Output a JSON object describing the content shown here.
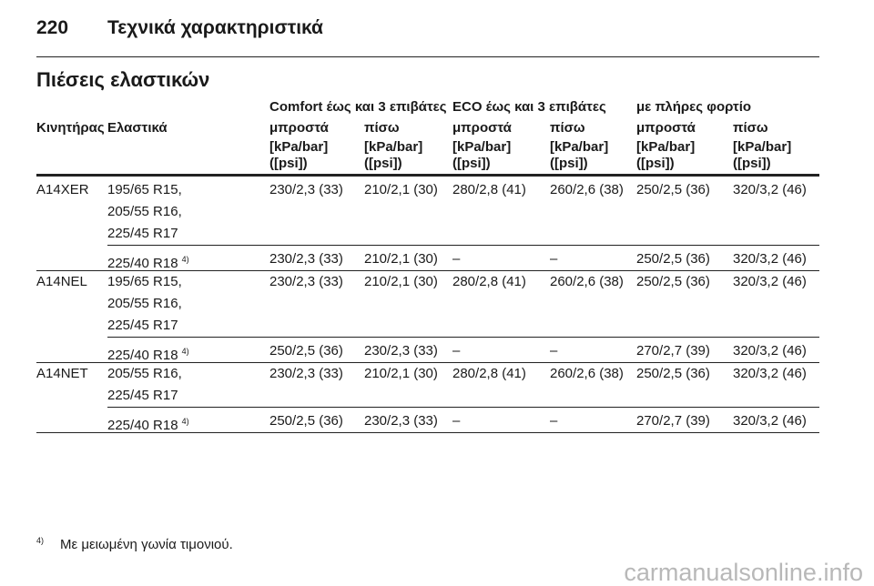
{
  "header": {
    "page_number": "220",
    "title": "Τεχνικά χαρακτηριστικά"
  },
  "section_title": "Πιέσεις ελαστικών",
  "table": {
    "group_headers": [
      "Comfort έως και 3 επιβάτες",
      "ECO έως και 3 επιβάτες",
      "με πλήρες φορτίο"
    ],
    "columns": [
      "Κινητήρας",
      "Ελαστικά",
      "μπροστά",
      "πίσω",
      "μπροστά",
      "πίσω",
      "μπροστά",
      "πίσω"
    ],
    "units": [
      [
        "[kPa/bar]",
        "([psi])"
      ],
      [
        "[kPa/bar]",
        "([psi])"
      ],
      [
        "[kPa/bar]",
        "([psi])"
      ],
      [
        "[kPa/bar]",
        "([psi])"
      ],
      [
        "[kPa/bar]",
        "([psi])"
      ],
      [
        "[kPa/bar]",
        "([psi])"
      ]
    ],
    "rows": [
      {
        "engine": "A14XER",
        "groups": [
          {
            "tires": [
              "195/65 R15,",
              "205/55 R16,",
              "225/45 R17"
            ],
            "values": [
              "230/2,3 (33)",
              "210/2,1 (30)",
              "280/2,8 (41)",
              "260/2,6 (38)",
              "250/2,5 (36)",
              "320/3,2 (46)"
            ]
          },
          {
            "tires": [
              "225/40 R18"
            ],
            "footnote_ref": "4)",
            "values": [
              "230/2,3 (33)",
              "210/2,1 (30)",
              "–",
              "–",
              "250/2,5 (36)",
              "320/3,2 (46)"
            ]
          }
        ]
      },
      {
        "engine": "A14NEL",
        "groups": [
          {
            "tires": [
              "195/65 R15,",
              "205/55 R16,",
              "225/45 R17"
            ],
            "values": [
              "230/2,3 (33)",
              "210/2,1 (30)",
              "280/2,8 (41)",
              "260/2,6 (38)",
              "250/2,5 (36)",
              "320/3,2 (46)"
            ]
          },
          {
            "tires": [
              "225/40 R18"
            ],
            "footnote_ref": "4)",
            "values": [
              "250/2,5 (36)",
              "230/2,3 (33)",
              "–",
              "–",
              "270/2,7 (39)",
              "320/3,2 (46)"
            ]
          }
        ]
      },
      {
        "engine": "A14NET",
        "groups": [
          {
            "tires": [
              "205/55 R16,",
              "225/45 R17"
            ],
            "values": [
              "230/2,3 (33)",
              "210/2,1 (30)",
              "280/2,8 (41)",
              "260/2,6 (38)",
              "250/2,5 (36)",
              "320/3,2 (46)"
            ]
          },
          {
            "tires": [
              "225/40 R18"
            ],
            "footnote_ref": "4)",
            "values": [
              "250/2,5 (36)",
              "230/2,3 (33)",
              "–",
              "–",
              "270/2,7 (39)",
              "320/3,2 (46)"
            ]
          }
        ]
      }
    ]
  },
  "footnote": {
    "marker": "4)",
    "text": "Με μειωμένη γωνία τιμονιού."
  },
  "watermark": "carmanualsonline.info"
}
